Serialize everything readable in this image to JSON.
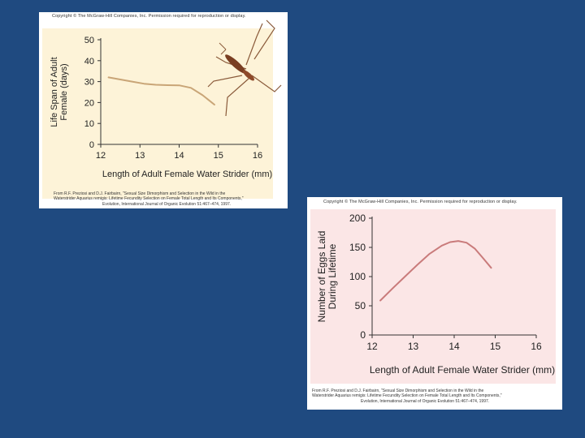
{
  "figure1": {
    "copyright": "Copyright © The McGraw-Hill Companies, Inc. Permission required for reproduction or display.",
    "citation": [
      "From R.F. Preziosi and D.J. Fairbairn, \"Sexual Size Dimorphism and Selection in the Wild in the",
      "Waterstrider Aquarius remigis: Lifetime Fecundity Selection on Female Total Length and Its Components,\"",
      "Evolution, International Journal of Organic Evolution 51:467–474, 1997."
    ]
  },
  "figure2": {
    "copyright": "Copyright © The McGraw-Hill Companies, Inc. Permission required for reproduction or display.",
    "citation": [
      "From R.F. Preziosi and D.J. Fairbairn, \"Sexual Size Dimorphism and Selection in the Wild in the",
      "Waterstrider Aquarius remigis: Lifetime Fecundity Selection on Female Total Length and Its Components,\"",
      "Evolution, International Journal of Organic Evolution 51:467–474, 1997."
    ]
  },
  "chart_data": [
    {
      "type": "line",
      "title": "",
      "xlabel": "Length of Adult Female Water Strider (mm)",
      "ylabel": [
        "Life Span of Adult",
        "Female (days)"
      ],
      "xlim": [
        12,
        16
      ],
      "ylim": [
        0,
        50
      ],
      "xticks": [
        12,
        13,
        14,
        15,
        16
      ],
      "yticks": [
        0,
        10,
        20,
        30,
        40,
        50
      ],
      "grid": false,
      "line_color": "#c9a577",
      "series": [
        {
          "x": [
            12.2,
            12.5,
            12.8,
            13.1,
            13.4,
            13.7,
            14.0,
            14.3,
            14.6,
            14.9
          ],
          "values": [
            32,
            31,
            30,
            29,
            28.5,
            28.3,
            28.2,
            27,
            23.5,
            19
          ]
        }
      ]
    },
    {
      "type": "line",
      "title": "",
      "xlabel": "Length of Adult Female Water Strider (mm)",
      "ylabel": [
        "Number of Eggs Laid",
        "During Lifetime"
      ],
      "xlim": [
        12,
        16
      ],
      "ylim": [
        0,
        200
      ],
      "xticks": [
        12,
        13,
        14,
        15,
        16
      ],
      "yticks": [
        0,
        50,
        100,
        150,
        200
      ],
      "grid": false,
      "line_color": "#c97b7b",
      "series": [
        {
          "x": [
            12.2,
            12.5,
            12.8,
            13.1,
            13.4,
            13.7,
            13.9,
            14.1,
            14.3,
            14.5,
            14.7,
            14.9
          ],
          "values": [
            59,
            80,
            100,
            120,
            139,
            153,
            159,
            161,
            158,
            148,
            132,
            115
          ]
        }
      ]
    }
  ]
}
